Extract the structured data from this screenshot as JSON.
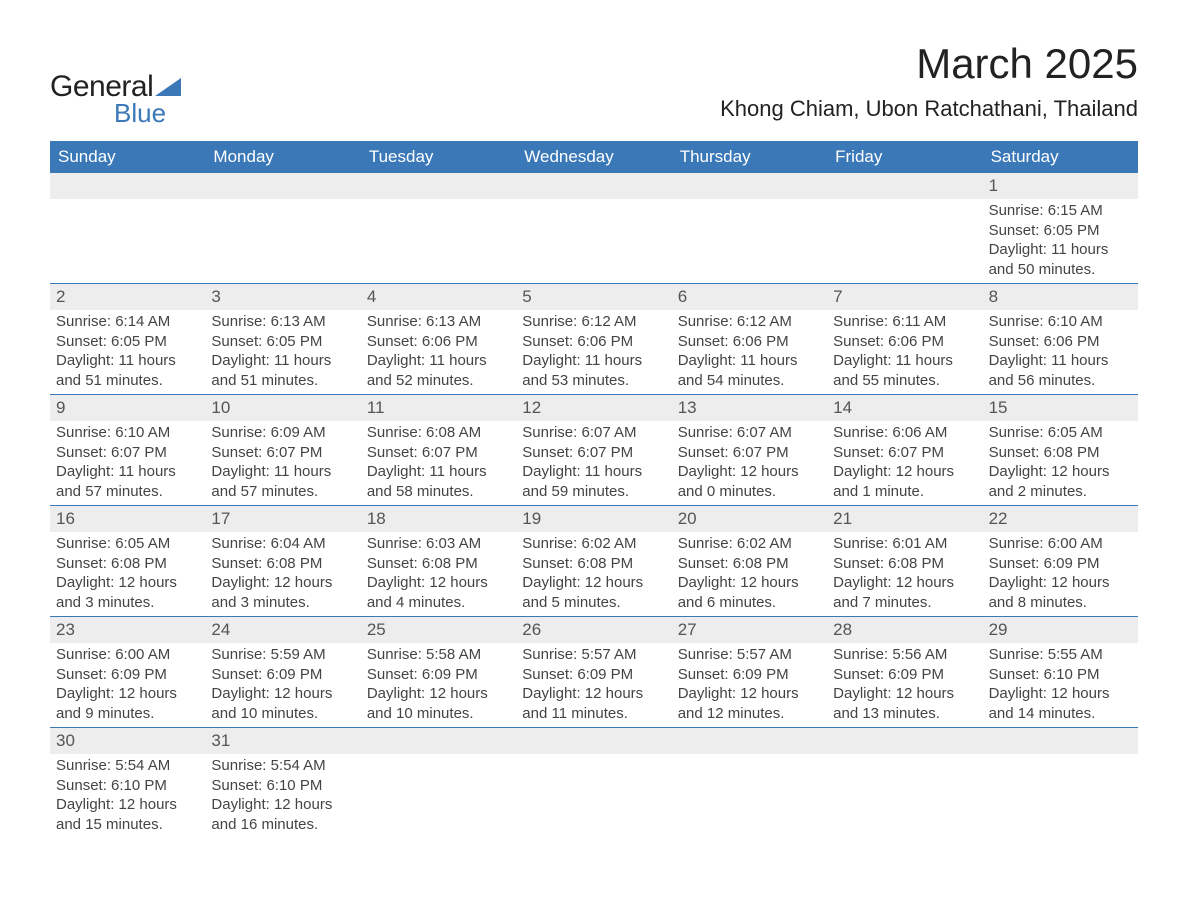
{
  "logo": {
    "general": "General",
    "blue": "Blue"
  },
  "title": "March 2025",
  "location": "Khong Chiam, Ubon Ratchathani, Thailand",
  "colors": {
    "header_bg": "#3a78b8",
    "header_text": "#ffffff",
    "daynum_bg": "#ededed",
    "daynum_text": "#555555",
    "body_text": "#444444",
    "accent_border": "#3a78b8",
    "page_bg": "#ffffff"
  },
  "typography": {
    "title_fontsize": 42,
    "location_fontsize": 22,
    "header_fontsize": 17,
    "daynum_fontsize": 17,
    "detail_fontsize": 15,
    "font_family": "Arial"
  },
  "layout": {
    "columns": 7,
    "rows": 6
  },
  "weekdays": [
    "Sunday",
    "Monday",
    "Tuesday",
    "Wednesday",
    "Thursday",
    "Friday",
    "Saturday"
  ],
  "field_labels": {
    "sunrise": "Sunrise",
    "sunset": "Sunset",
    "daylight": "Daylight"
  },
  "weeks": [
    [
      {
        "day": null
      },
      {
        "day": null
      },
      {
        "day": null
      },
      {
        "day": null
      },
      {
        "day": null
      },
      {
        "day": null
      },
      {
        "day": "1",
        "sunrise": "6:15 AM",
        "sunset": "6:05 PM",
        "daylight": "11 hours and 50 minutes."
      }
    ],
    [
      {
        "day": "2",
        "sunrise": "6:14 AM",
        "sunset": "6:05 PM",
        "daylight": "11 hours and 51 minutes."
      },
      {
        "day": "3",
        "sunrise": "6:13 AM",
        "sunset": "6:05 PM",
        "daylight": "11 hours and 51 minutes."
      },
      {
        "day": "4",
        "sunrise": "6:13 AM",
        "sunset": "6:06 PM",
        "daylight": "11 hours and 52 minutes."
      },
      {
        "day": "5",
        "sunrise": "6:12 AM",
        "sunset": "6:06 PM",
        "daylight": "11 hours and 53 minutes."
      },
      {
        "day": "6",
        "sunrise": "6:12 AM",
        "sunset": "6:06 PM",
        "daylight": "11 hours and 54 minutes."
      },
      {
        "day": "7",
        "sunrise": "6:11 AM",
        "sunset": "6:06 PM",
        "daylight": "11 hours and 55 minutes."
      },
      {
        "day": "8",
        "sunrise": "6:10 AM",
        "sunset": "6:06 PM",
        "daylight": "11 hours and 56 minutes."
      }
    ],
    [
      {
        "day": "9",
        "sunrise": "6:10 AM",
        "sunset": "6:07 PM",
        "daylight": "11 hours and 57 minutes."
      },
      {
        "day": "10",
        "sunrise": "6:09 AM",
        "sunset": "6:07 PM",
        "daylight": "11 hours and 57 minutes."
      },
      {
        "day": "11",
        "sunrise": "6:08 AM",
        "sunset": "6:07 PM",
        "daylight": "11 hours and 58 minutes."
      },
      {
        "day": "12",
        "sunrise": "6:07 AM",
        "sunset": "6:07 PM",
        "daylight": "11 hours and 59 minutes."
      },
      {
        "day": "13",
        "sunrise": "6:07 AM",
        "sunset": "6:07 PM",
        "daylight": "12 hours and 0 minutes."
      },
      {
        "day": "14",
        "sunrise": "6:06 AM",
        "sunset": "6:07 PM",
        "daylight": "12 hours and 1 minute."
      },
      {
        "day": "15",
        "sunrise": "6:05 AM",
        "sunset": "6:08 PM",
        "daylight": "12 hours and 2 minutes."
      }
    ],
    [
      {
        "day": "16",
        "sunrise": "6:05 AM",
        "sunset": "6:08 PM",
        "daylight": "12 hours and 3 minutes."
      },
      {
        "day": "17",
        "sunrise": "6:04 AM",
        "sunset": "6:08 PM",
        "daylight": "12 hours and 3 minutes."
      },
      {
        "day": "18",
        "sunrise": "6:03 AM",
        "sunset": "6:08 PM",
        "daylight": "12 hours and 4 minutes."
      },
      {
        "day": "19",
        "sunrise": "6:02 AM",
        "sunset": "6:08 PM",
        "daylight": "12 hours and 5 minutes."
      },
      {
        "day": "20",
        "sunrise": "6:02 AM",
        "sunset": "6:08 PM",
        "daylight": "12 hours and 6 minutes."
      },
      {
        "day": "21",
        "sunrise": "6:01 AM",
        "sunset": "6:08 PM",
        "daylight": "12 hours and 7 minutes."
      },
      {
        "day": "22",
        "sunrise": "6:00 AM",
        "sunset": "6:09 PM",
        "daylight": "12 hours and 8 minutes."
      }
    ],
    [
      {
        "day": "23",
        "sunrise": "6:00 AM",
        "sunset": "6:09 PM",
        "daylight": "12 hours and 9 minutes."
      },
      {
        "day": "24",
        "sunrise": "5:59 AM",
        "sunset": "6:09 PM",
        "daylight": "12 hours and 10 minutes."
      },
      {
        "day": "25",
        "sunrise": "5:58 AM",
        "sunset": "6:09 PM",
        "daylight": "12 hours and 10 minutes."
      },
      {
        "day": "26",
        "sunrise": "5:57 AM",
        "sunset": "6:09 PM",
        "daylight": "12 hours and 11 minutes."
      },
      {
        "day": "27",
        "sunrise": "5:57 AM",
        "sunset": "6:09 PM",
        "daylight": "12 hours and 12 minutes."
      },
      {
        "day": "28",
        "sunrise": "5:56 AM",
        "sunset": "6:09 PM",
        "daylight": "12 hours and 13 minutes."
      },
      {
        "day": "29",
        "sunrise": "5:55 AM",
        "sunset": "6:10 PM",
        "daylight": "12 hours and 14 minutes."
      }
    ],
    [
      {
        "day": "30",
        "sunrise": "5:54 AM",
        "sunset": "6:10 PM",
        "daylight": "12 hours and 15 minutes."
      },
      {
        "day": "31",
        "sunrise": "5:54 AM",
        "sunset": "6:10 PM",
        "daylight": "12 hours and 16 minutes."
      },
      {
        "day": null
      },
      {
        "day": null
      },
      {
        "day": null
      },
      {
        "day": null
      },
      {
        "day": null
      }
    ]
  ]
}
